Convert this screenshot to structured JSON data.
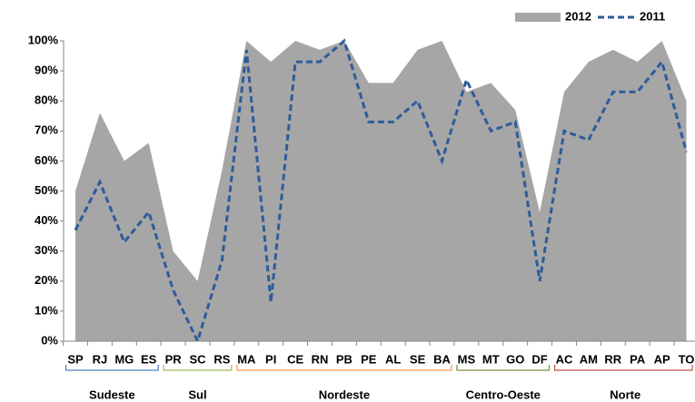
{
  "chart_data": {
    "type": "area-line",
    "categories": [
      "SP",
      "RJ",
      "MG",
      "ES",
      "PR",
      "SC",
      "RS",
      "MA",
      "PI",
      "CE",
      "RN",
      "PB",
      "PE",
      "AL",
      "SE",
      "BA",
      "MS",
      "MT",
      "GO",
      "DF",
      "AC",
      "AM",
      "RR",
      "PA",
      "AP",
      "TO"
    ],
    "series": [
      {
        "name": "2012",
        "kind": "area",
        "color": "#a6a6a6",
        "values": [
          50,
          76,
          60,
          66,
          30,
          20,
          57,
          100,
          93,
          100,
          97,
          100,
          86,
          86,
          97,
          100,
          83,
          86,
          77,
          43,
          83,
          93,
          97,
          93,
          100,
          80
        ]
      },
      {
        "name": "2011",
        "kind": "line",
        "color": "#2e5c9a",
        "dashed": true,
        "values": [
          37,
          53,
          33,
          43,
          17,
          0,
          27,
          97,
          13,
          93,
          93,
          100,
          73,
          73,
          80,
          60,
          87,
          70,
          73,
          20,
          70,
          67,
          83,
          83,
          93,
          63
        ]
      }
    ],
    "groups": [
      {
        "name": "Sudeste",
        "color": "#4f81bd",
        "categories": [
          "SP",
          "RJ",
          "MG",
          "ES"
        ]
      },
      {
        "name": "Sul",
        "color": "#9bbb59",
        "categories": [
          "PR",
          "SC",
          "RS"
        ]
      },
      {
        "name": "Nordeste",
        "color": "#f79646",
        "categories": [
          "MA",
          "PI",
          "CE",
          "RN",
          "PB",
          "PE",
          "AL",
          "SE",
          "BA"
        ]
      },
      {
        "name": "Centro-Oeste",
        "color": "#77933c",
        "categories": [
          "MS",
          "MT",
          "GO",
          "DF"
        ]
      },
      {
        "name": "Norte",
        "color": "#c0504d",
        "categories": [
          "AC",
          "AM",
          "RR",
          "PA",
          "AP",
          "TO"
        ]
      }
    ],
    "ylim": [
      0,
      100
    ],
    "yticks": [
      {
        "value": 0,
        "label": "0%"
      },
      {
        "value": 10,
        "label": "10%"
      },
      {
        "value": 20,
        "label": "20%"
      },
      {
        "value": 30,
        "label": "30%"
      },
      {
        "value": 40,
        "label": "40%"
      },
      {
        "value": 50,
        "label": "50%"
      },
      {
        "value": 60,
        "label": "60%"
      },
      {
        "value": 70,
        "label": "70%"
      },
      {
        "value": 80,
        "label": "80%"
      },
      {
        "value": 90,
        "label": "90%"
      },
      {
        "value": 100,
        "label": "100%"
      }
    ],
    "legend": "top-right"
  }
}
